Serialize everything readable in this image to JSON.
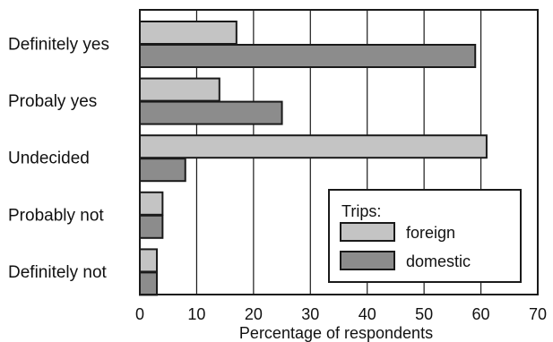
{
  "chart_data": {
    "type": "bar",
    "orientation": "horizontal",
    "categories": [
      "Definitely yes",
      "Probaly yes",
      "Undecided",
      "Probably not",
      "Definitely not"
    ],
    "series": [
      {
        "name": "foreign",
        "values": [
          17,
          14,
          61,
          4,
          3
        ],
        "color": "#c4c4c4"
      },
      {
        "name": "domestic",
        "values": [
          59,
          25,
          8,
          4,
          3
        ],
        "color": "#8c8c8c"
      }
    ],
    "title": "",
    "xlabel": "Percentage of respondents",
    "ylabel": "",
    "xlim": [
      0,
      70
    ],
    "xticks": [
      "0",
      "10",
      "20",
      "30",
      "40",
      "50",
      "60",
      "70"
    ],
    "grid": "vertical",
    "legend": {
      "title": "Trips:",
      "placement": "bottom-right"
    }
  }
}
